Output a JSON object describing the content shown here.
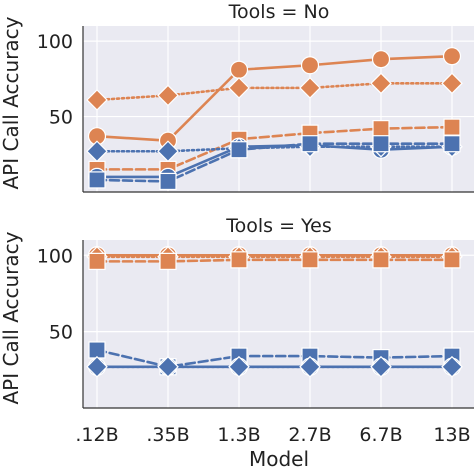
{
  "chart_data": {
    "type": "line",
    "xlabel": "Model",
    "ylabel": "API Call Accuracy",
    "categories": [
      ".12B",
      ".35B",
      "1.3B",
      "2.7B",
      "6.7B",
      "13B"
    ],
    "colors": {
      "orange": "#dd8452",
      "blue": "#4c72b0"
    },
    "panels": [
      {
        "title": "Tools = No",
        "ylim": [
          0,
          110
        ],
        "yticks": [
          50,
          100
        ],
        "series": [
          {
            "color": "orange",
            "marker": "circle",
            "linestyle": "solid",
            "values": [
              37,
              34,
              81,
              84,
              88,
              90
            ]
          },
          {
            "color": "orange",
            "marker": "diamond",
            "linestyle": "dotted",
            "values": [
              61,
              64,
              69,
              69,
              72,
              72
            ]
          },
          {
            "color": "orange",
            "marker": "square",
            "linestyle": "dashed",
            "values": [
              15,
              15,
              35,
              39,
              42,
              43
            ]
          },
          {
            "color": "blue",
            "marker": "circle",
            "linestyle": "solid",
            "values": [
              10,
              10,
              30,
              31,
              28,
              30
            ]
          },
          {
            "color": "blue",
            "marker": "diamond",
            "linestyle": "dotted",
            "values": [
              27,
              27,
              29,
              30,
              30,
              30
            ]
          },
          {
            "color": "blue",
            "marker": "square",
            "linestyle": "dashed",
            "values": [
              8,
              7,
              28,
              32,
              32,
              32
            ]
          }
        ]
      },
      {
        "title": "Tools = Yes",
        "ylim": [
          0,
          110
        ],
        "yticks": [
          50,
          100
        ],
        "series": [
          {
            "color": "orange",
            "marker": "circle",
            "linestyle": "solid",
            "values": [
              100,
              100,
              100,
              100,
              100,
              100
            ]
          },
          {
            "color": "orange",
            "marker": "diamond",
            "linestyle": "dotted",
            "values": [
              99,
              99,
              99,
              99,
              99,
              99
            ]
          },
          {
            "color": "orange",
            "marker": "square",
            "linestyle": "dashed",
            "values": [
              96,
              96,
              97,
              97,
              97,
              97
            ]
          },
          {
            "color": "blue",
            "marker": "square",
            "linestyle": "dashed",
            "values": [
              38,
              27,
              34,
              34,
              33,
              34
            ]
          },
          {
            "color": "blue",
            "marker": "circle",
            "linestyle": "solid",
            "values": [
              27,
              27,
              27,
              27,
              27,
              27
            ]
          },
          {
            "color": "blue",
            "marker": "diamond",
            "linestyle": "dotted",
            "values": [
              27,
              27,
              27,
              27,
              27,
              27
            ]
          }
        ]
      }
    ]
  }
}
